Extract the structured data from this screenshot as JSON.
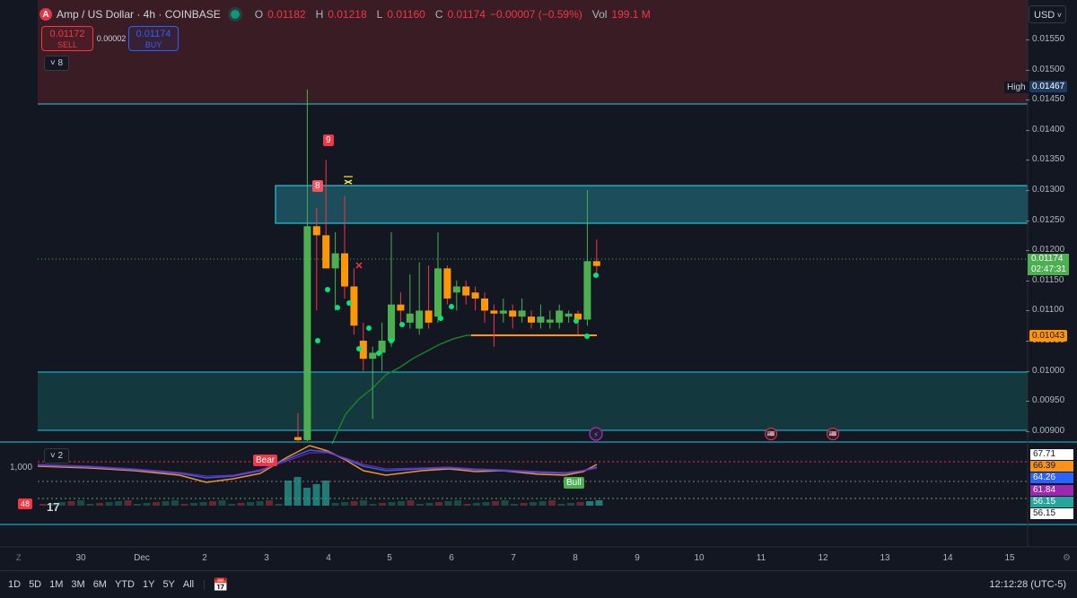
{
  "legend": {
    "symbol_icon": "amp-logo-icon",
    "symbol_icon_text": "A",
    "title": "Amp / US Dollar · 4h · COINBASE",
    "o_label": "O",
    "o_value": "0.01182",
    "h_label": "H",
    "h_value": "0.01218",
    "l_label": "L",
    "l_value": "0.01160",
    "c_label": "C",
    "c_value": "0.01174",
    "change": "−0.00007 (−0.59%)",
    "vol_label": "Vol",
    "vol_value": "199.1 M"
  },
  "trade": {
    "sell_price": "0.01172",
    "sell_label": "SELL",
    "spread": "0.00002",
    "buy_price": "0.01174",
    "buy_label": "BUY"
  },
  "collapse_main": "8",
  "collapse_indicator": "2",
  "currency": "USD",
  "price_axis": [
    "0.01550",
    "0.01500",
    "0.01450",
    "0.01400",
    "0.01350",
    "0.01300",
    "0.01250",
    "0.01200",
    "0.01150",
    "0.01100",
    "0.01050",
    "0.01000",
    "0.00950",
    "0.00900"
  ],
  "high_label": "High",
  "high_value": "0.01467",
  "last_price": "0.01174",
  "countdown": "02:47:31",
  "orange_level": "0.01043",
  "markers": {
    "nine": "9",
    "eight": "8",
    "bear": "Bear",
    "bull": "Bull"
  },
  "indicator": {
    "left_value": "1,000",
    "bar_label": "48",
    "values": [
      "67.71",
      "66.39",
      "64.26",
      "61.84",
      "56.15",
      "56.15"
    ],
    "value_colors": [
      "#ffffff",
      "#f7931a",
      "#2962ff",
      "#9c27b0",
      "#26a69a",
      "#ffffff"
    ]
  },
  "time_axis": [
    "30",
    "Dec",
    "2",
    "3",
    "4",
    "5",
    "6",
    "7",
    "8",
    "9",
    "10",
    "11",
    "12",
    "13",
    "14",
    "15"
  ],
  "timeframes": [
    "1D",
    "5D",
    "1M",
    "3M",
    "6M",
    "YTD",
    "1Y",
    "5Y",
    "All"
  ],
  "clock": "12:12:28 (UTC-5)",
  "tv_logo": "17",
  "colors": {
    "up": "#4caf50",
    "down": "#ff9800",
    "wick_up": "#4caf50",
    "zone": "#00bcd4"
  },
  "chart_data": {
    "type": "candlestick",
    "x_labels": [
      "30",
      "Dec",
      "2",
      "3",
      "4",
      "5",
      "6",
      "7",
      "8",
      "9",
      "10",
      "11",
      "12",
      "13",
      "14",
      "15"
    ],
    "ylim": [
      0.0088,
      0.0157
    ],
    "candles": [
      {
        "o": 0.0089,
        "h": 0.0093,
        "l": 0.0088,
        "c": 0.00885
      },
      {
        "o": 0.00885,
        "h": 0.01467,
        "l": 0.0088,
        "c": 0.0124
      },
      {
        "o": 0.0124,
        "h": 0.0127,
        "l": 0.011,
        "c": 0.01225
      },
      {
        "o": 0.01225,
        "h": 0.0135,
        "l": 0.0117,
        "c": 0.0117
      },
      {
        "o": 0.0117,
        "h": 0.0123,
        "l": 0.011,
        "c": 0.01195
      },
      {
        "o": 0.01195,
        "h": 0.0129,
        "l": 0.0112,
        "c": 0.0114
      },
      {
        "o": 0.0114,
        "h": 0.0117,
        "l": 0.0106,
        "c": 0.01075
      },
      {
        "o": 0.0105,
        "h": 0.0108,
        "l": 0.01,
        "c": 0.0102
      },
      {
        "o": 0.0102,
        "h": 0.0104,
        "l": 0.0092,
        "c": 0.0103
      },
      {
        "o": 0.0103,
        "h": 0.0108,
        "l": 0.01,
        "c": 0.0105
      },
      {
        "o": 0.0105,
        "h": 0.0123,
        "l": 0.0104,
        "c": 0.0111
      },
      {
        "o": 0.0111,
        "h": 0.0113,
        "l": 0.0108,
        "c": 0.011
      },
      {
        "o": 0.0108,
        "h": 0.0116,
        "l": 0.0107,
        "c": 0.01095
      },
      {
        "o": 0.0107,
        "h": 0.0118,
        "l": 0.0106,
        "c": 0.011
      },
      {
        "o": 0.011,
        "h": 0.01175,
        "l": 0.0107,
        "c": 0.0108
      },
      {
        "o": 0.0109,
        "h": 0.0123,
        "l": 0.0108,
        "c": 0.0117
      },
      {
        "o": 0.0117,
        "h": 0.01175,
        "l": 0.0111,
        "c": 0.0112
      },
      {
        "o": 0.0113,
        "h": 0.0115,
        "l": 0.011,
        "c": 0.0114
      },
      {
        "o": 0.0114,
        "h": 0.0115,
        "l": 0.0111,
        "c": 0.01125
      },
      {
        "o": 0.0113,
        "h": 0.0114,
        "l": 0.011,
        "c": 0.0112
      },
      {
        "o": 0.0112,
        "h": 0.0113,
        "l": 0.0108,
        "c": 0.011
      },
      {
        "o": 0.011,
        "h": 0.0111,
        "l": 0.0104,
        "c": 0.01095
      },
      {
        "o": 0.01095,
        "h": 0.0112,
        "l": 0.0108,
        "c": 0.011
      },
      {
        "o": 0.011,
        "h": 0.0111,
        "l": 0.0107,
        "c": 0.0109
      },
      {
        "o": 0.0109,
        "h": 0.0112,
        "l": 0.0108,
        "c": 0.011
      },
      {
        "o": 0.0109,
        "h": 0.011,
        "l": 0.0107,
        "c": 0.0108
      },
      {
        "o": 0.0108,
        "h": 0.0111,
        "l": 0.0107,
        "c": 0.0109
      },
      {
        "o": 0.0108,
        "h": 0.011,
        "l": 0.0107,
        "c": 0.01085
      },
      {
        "o": 0.0108,
        "h": 0.0111,
        "l": 0.0107,
        "c": 0.011
      },
      {
        "o": 0.0109,
        "h": 0.011,
        "l": 0.0108,
        "c": 0.01095
      },
      {
        "o": 0.01095,
        "h": 0.011,
        "l": 0.0106,
        "c": 0.01085
      },
      {
        "o": 0.01085,
        "h": 0.013,
        "l": 0.01075,
        "c": 0.01182
      },
      {
        "o": 0.01182,
        "h": 0.01218,
        "l": 0.0116,
        "c": 0.01174
      }
    ]
  }
}
